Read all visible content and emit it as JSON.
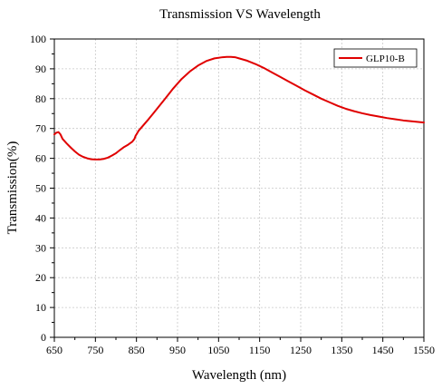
{
  "chart_data": {
    "type": "line",
    "title": "Transmission VS Wavelength",
    "xlabel": "Wavelength (nm)",
    "ylabel": "Transmission(%)",
    "xlim": [
      650,
      1550
    ],
    "ylim": [
      0,
      100
    ],
    "xticks": [
      650,
      750,
      850,
      950,
      1050,
      1150,
      1250,
      1350,
      1450,
      1550
    ],
    "yticks": [
      0,
      10,
      20,
      30,
      40,
      50,
      60,
      70,
      80,
      90,
      100
    ],
    "grid": true,
    "legend_position": "top-right",
    "colors": {
      "series": "#e00000",
      "axis": "#000000",
      "grid": "#c8c8c8"
    },
    "series": [
      {
        "name": "GLP10-B",
        "x": [
          650,
          655,
          660,
          665,
          670,
          680,
          690,
          700,
          710,
          720,
          730,
          740,
          750,
          760,
          770,
          780,
          790,
          800,
          810,
          820,
          830,
          840,
          845,
          848,
          850,
          855,
          860,
          870,
          880,
          890,
          900,
          920,
          940,
          960,
          980,
          1000,
          1020,
          1040,
          1060,
          1070,
          1080,
          1090,
          1100,
          1120,
          1140,
          1160,
          1180,
          1200,
          1220,
          1240,
          1260,
          1280,
          1300,
          1320,
          1340,
          1350,
          1360,
          1380,
          1400,
          1420,
          1440,
          1460,
          1480,
          1500,
          1520,
          1550
        ],
        "y": [
          68.0,
          68.6,
          68.8,
          68.0,
          66.5,
          65.0,
          63.6,
          62.3,
          61.2,
          60.5,
          60.0,
          59.7,
          59.6,
          59.6,
          59.8,
          60.2,
          60.9,
          61.7,
          62.8,
          63.8,
          64.6,
          65.6,
          66.5,
          67.6,
          68.0,
          69.2,
          70.0,
          71.6,
          73.2,
          74.9,
          76.6,
          80.0,
          83.5,
          86.6,
          89.1,
          91.1,
          92.6,
          93.5,
          93.9,
          94.0,
          94.0,
          93.9,
          93.5,
          92.7,
          91.6,
          90.3,
          88.8,
          87.3,
          85.8,
          84.3,
          82.8,
          81.4,
          80.0,
          78.8,
          77.6,
          77.1,
          76.6,
          75.8,
          75.1,
          74.5,
          74.0,
          73.5,
          73.1,
          72.7,
          72.4,
          72.0
        ]
      }
    ]
  }
}
